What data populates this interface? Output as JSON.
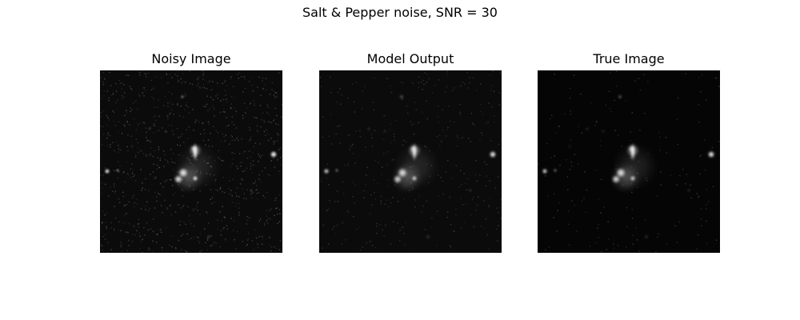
{
  "figure": {
    "suptitle": "Salt & Pepper noise, SNR = 30"
  },
  "panels": [
    {
      "title": "Noisy Image",
      "variant": "noisy"
    },
    {
      "title": "Model Output",
      "variant": "output"
    },
    {
      "title": "True Image",
      "variant": "true"
    }
  ],
  "colors": {
    "background": "#ffffff",
    "image_background": "#000000",
    "text": "#000000"
  }
}
